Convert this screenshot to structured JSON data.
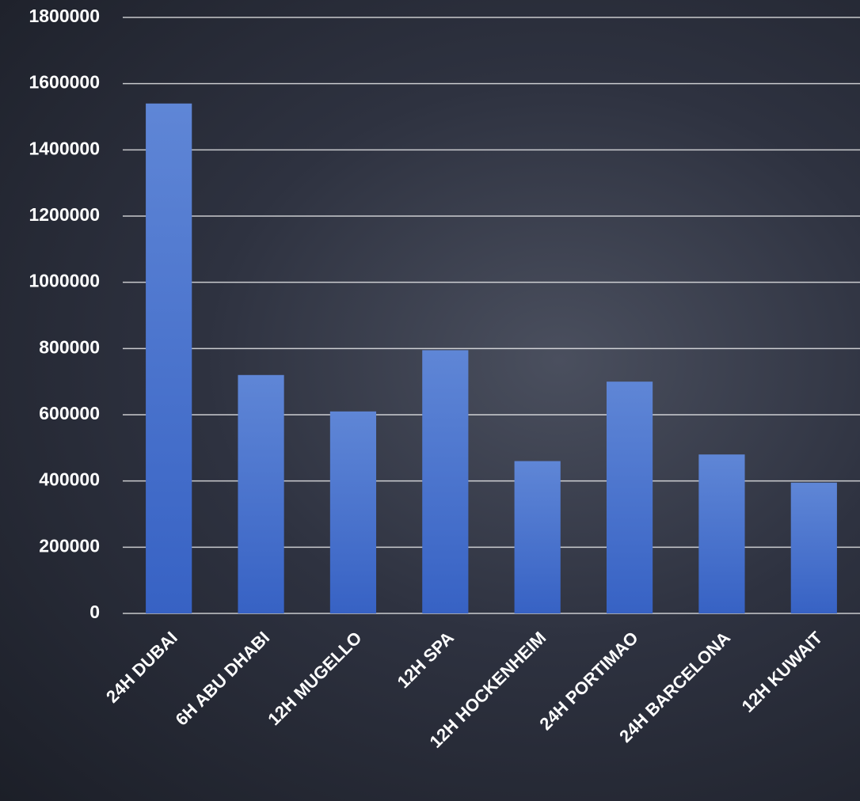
{
  "chart_data": {
    "type": "bar",
    "categories": [
      "24H DUBAI",
      "6H ABU DHABI",
      "12H MUGELLO",
      "12H SPA",
      "12H HOCKENHEIM",
      "24H PORTIMAO",
      "24H BARCELONA",
      "12H KUWAIT"
    ],
    "values": [
      1540000,
      720000,
      610000,
      795000,
      460000,
      700000,
      480000,
      395000
    ],
    "color": "#4a74d0",
    "ylim": [
      0,
      1800000
    ],
    "yticks": [
      0,
      200000,
      400000,
      600000,
      800000,
      1000000,
      1200000,
      1400000,
      1600000,
      1800000
    ],
    "grid": true
  }
}
